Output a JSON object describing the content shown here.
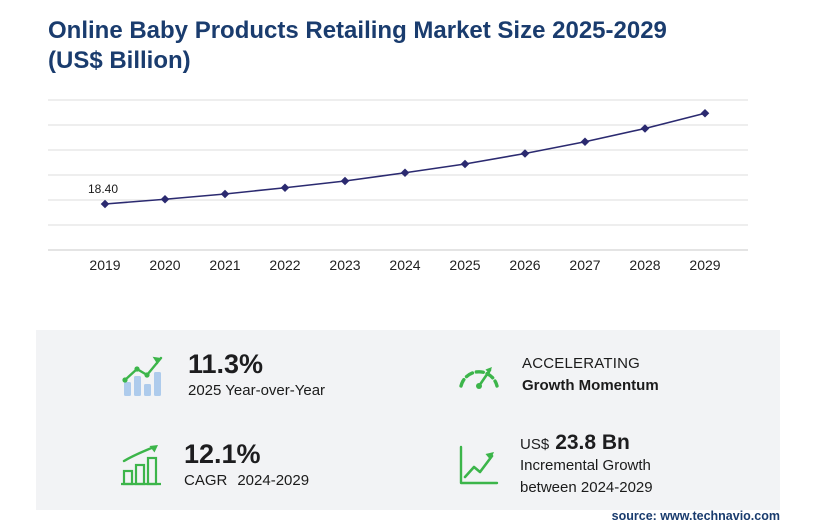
{
  "title": {
    "line1": "Online Baby Products Retailing Market Size 2025-2029",
    "line2": "(US$ Billion)"
  },
  "chart_data": {
    "type": "line",
    "title": "Online Baby Products Retailing Market Size 2025-2029 (US$ Billion)",
    "xlabel": "",
    "ylabel": "US$ Billion",
    "x": [
      "2019",
      "2020",
      "2021",
      "2022",
      "2023",
      "2024",
      "2025",
      "2026",
      "2027",
      "2028",
      "2029"
    ],
    "values": [
      18.4,
      20.3,
      22.4,
      24.9,
      27.6,
      30.9,
      34.4,
      38.6,
      43.3,
      48.6,
      54.7
    ],
    "first_point_label": "18.40",
    "ylim": [
      0,
      60
    ],
    "grid": true,
    "legend": "none",
    "line_color": "#2b2a70"
  },
  "stats": {
    "yoy": {
      "value": "11.3%",
      "label": "2025 Year-over-Year"
    },
    "momentum": {
      "line1": "ACCELERATING",
      "line2": "Growth Momentum"
    },
    "cagr": {
      "value": "12.1%",
      "label_prefix": "CAGR",
      "label_range": "2024-2029"
    },
    "incremental": {
      "currency": "US$",
      "value": "23.8 Bn",
      "line1": "Incremental Growth",
      "line2": "between 2024-2029"
    }
  },
  "source": "source: www.technavio.com",
  "colors": {
    "accent_green": "#3cb54a",
    "navy": "#1a3c6e",
    "line": "#2b2a70",
    "panel_bg": "#f2f3f5",
    "text_dark": "#1d1d1f"
  }
}
